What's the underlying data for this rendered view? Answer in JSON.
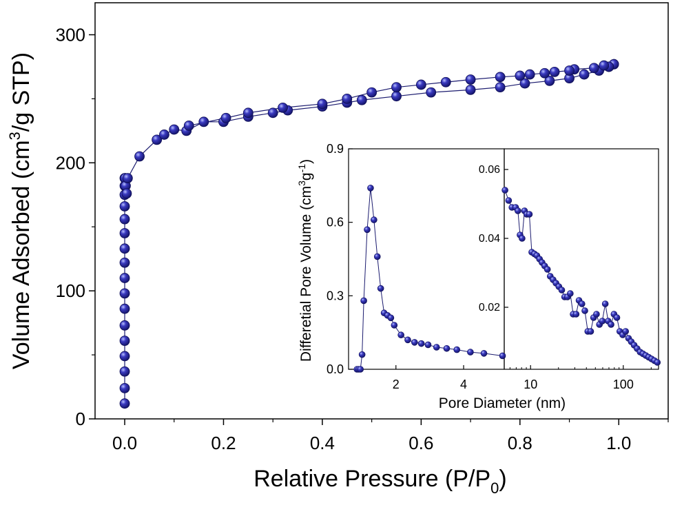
{
  "chart_data": [
    {
      "type": "scatter",
      "name": "isotherm",
      "xlabel": "Relative Pressure (P/P0)",
      "xlabel_main": "Relative Pressure (P/P",
      "xlabel_sub": "0",
      "xlabel_close": ")",
      "ylabel": "Volume Adsorbed (cm3/g STP)",
      "ylabel_pre": "Volume Adsorbed (cm",
      "ylabel_sup": "3",
      "ylabel_post": "/g STP)",
      "xlim": [
        -0.06,
        1.1
      ],
      "ylim": [
        0,
        325
      ],
      "xticks": [
        "0.0",
        "0.2",
        "0.4",
        "0.6",
        "0.8",
        "1.0"
      ],
      "xtick_values": [
        0,
        0.2,
        0.4,
        0.6,
        0.8,
        1.0
      ],
      "yticks": [
        "0",
        "100",
        "200",
        "300"
      ],
      "ytick_values": [
        0,
        100,
        200,
        300
      ],
      "marker_color": "#1a1a8c",
      "line_color": "#1a1a6e",
      "series": [
        {
          "role": "adsorption",
          "x": [
            0.0,
            0.0,
            0.0,
            0.0,
            0.0,
            0.0,
            0.0,
            0.0,
            0.0,
            0.0,
            0.0,
            0.0,
            0.0,
            0.0,
            0.0,
            0.0,
            0.0,
            0.001,
            0.002,
            0.004,
            0.006,
            0.03,
            0.065,
            0.08,
            0.1,
            0.125,
            0.16,
            0.2,
            0.25,
            0.3,
            0.33,
            0.4,
            0.45,
            0.48,
            0.55,
            0.62,
            0.7,
            0.76,
            0.81,
            0.86,
            0.9,
            0.93,
            0.96,
            0.98,
            0.99
          ],
          "y": [
            12,
            24,
            37,
            49,
            61,
            73,
            86,
            98,
            110,
            122,
            133,
            145,
            156,
            166,
            175,
            182,
            188,
            188,
            182,
            176,
            188,
            205,
            218,
            222,
            226,
            225,
            232,
            232,
            236,
            239,
            241,
            244,
            247,
            249,
            252,
            255,
            257,
            259,
            262,
            264,
            266,
            269,
            272,
            275,
            277
          ]
        },
        {
          "role": "desorption",
          "x": [
            0.99,
            0.98,
            0.97,
            0.95,
            0.91,
            0.9,
            0.87,
            0.85,
            0.82,
            0.8,
            0.76,
            0.7,
            0.65,
            0.6,
            0.55,
            0.5,
            0.45,
            0.4,
            0.32,
            0.25,
            0.205,
            0.13
          ],
          "y": [
            277,
            275,
            276,
            274,
            273,
            272,
            271,
            270,
            269,
            268,
            267,
            265,
            263,
            261,
            259,
            255,
            250,
            246,
            243,
            239,
            235,
            229
          ]
        }
      ]
    },
    {
      "type": "scatter",
      "name": "inset-left",
      "ylabel": "Differetial Pore Volume (cm3g-1)",
      "ylabel_pre": "Differetial Pore Volume (cm",
      "ylabel_sup1": "3",
      "ylabel_mid": "g",
      "ylabel_sup2": "-1",
      "ylabel_post": ")",
      "xlim": [
        0.6,
        5.2
      ],
      "ylim": [
        0,
        0.9
      ],
      "xticks": [
        "2",
        "4"
      ],
      "xtick_values": [
        2,
        4
      ],
      "yticks": [
        "0.0",
        "0.3",
        "0.6",
        "0.9"
      ],
      "ytick_values": [
        0,
        0.3,
        0.6,
        0.9
      ],
      "x": [
        0.85,
        0.9,
        0.95,
        1.0,
        1.05,
        1.15,
        1.25,
        1.35,
        1.45,
        1.55,
        1.65,
        1.75,
        1.85,
        1.95,
        2.15,
        2.35,
        2.55,
        2.75,
        2.95,
        3.2,
        3.5,
        3.8,
        4.2,
        4.6,
        5.15
      ],
      "y": [
        0.0,
        0.0,
        0.0,
        0.06,
        0.28,
        0.57,
        0.74,
        0.61,
        0.46,
        0.33,
        0.23,
        0.22,
        0.21,
        0.18,
        0.14,
        0.12,
        0.11,
        0.105,
        0.1,
        0.09,
        0.085,
        0.08,
        0.07,
        0.065,
        0.055
      ]
    },
    {
      "type": "scatter",
      "name": "inset-right",
      "xlabel": "Pore Diameter (nm)",
      "xscale": "log",
      "xlim": [
        5.2,
        240
      ],
      "ylim": [
        0.002,
        0.066
      ],
      "xticks": [
        "10",
        "100"
      ],
      "xtick_values": [
        10,
        100
      ],
      "yticks": [
        "0.02",
        "0.04",
        "0.06"
      ],
      "ytick_values": [
        0.02,
        0.04,
        0.06
      ],
      "x": [
        5.3,
        5.8,
        6.3,
        6.9,
        7.3,
        7.7,
        8.1,
        8.6,
        9.1,
        9.7,
        10.3,
        11.0,
        11.7,
        12.5,
        13.3,
        14.2,
        15.2,
        16.3,
        17.5,
        18.8,
        20.2,
        21.7,
        23.3,
        25.0,
        26.8,
        28.8,
        31.0,
        33.3,
        35.8,
        38.5,
        41.4,
        44.5,
        47.8,
        51.4,
        55.3,
        59.4,
        63.9,
        68.7,
        73.8,
        79.4,
        85.3,
        91.7,
        98.6,
        106,
        114,
        122,
        131,
        141,
        152,
        163,
        175,
        188,
        202,
        217,
        233
      ],
      "y": [
        0.054,
        0.051,
        0.049,
        0.049,
        0.048,
        0.041,
        0.04,
        0.048,
        0.047,
        0.047,
        0.036,
        0.0355,
        0.035,
        0.034,
        0.033,
        0.032,
        0.031,
        0.029,
        0.028,
        0.027,
        0.026,
        0.025,
        0.023,
        0.023,
        0.024,
        0.018,
        0.018,
        0.022,
        0.021,
        0.019,
        0.013,
        0.013,
        0.017,
        0.018,
        0.015,
        0.016,
        0.021,
        0.016,
        0.015,
        0.018,
        0.017,
        0.013,
        0.012,
        0.013,
        0.011,
        0.01,
        0.009,
        0.008,
        0.007,
        0.0065,
        0.006,
        0.0055,
        0.005,
        0.0045,
        0.004
      ]
    }
  ]
}
